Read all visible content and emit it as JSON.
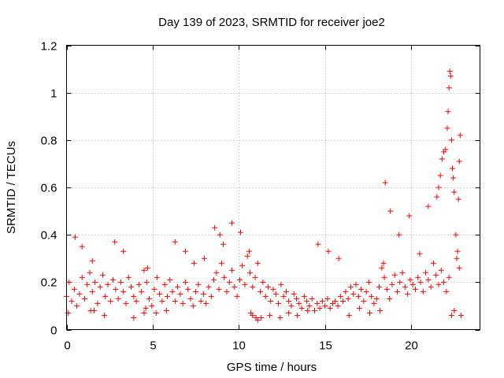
{
  "chart_data": {
    "type": "scatter",
    "title": "Day 139 of 2023, SRMTID for receiver joe2",
    "xlabel": "GPS time / hours",
    "ylabel": "SRMTID / TECUs",
    "xlim": [
      0,
      24
    ],
    "ylim": [
      0,
      1.2
    ],
    "xticks": [
      0,
      5,
      10,
      15,
      20
    ],
    "xtick_labels": [
      "0",
      "5",
      "10",
      "15",
      "20"
    ],
    "yticks": [
      0,
      0.2,
      0.4,
      0.6,
      0.8,
      1.0,
      1.2
    ],
    "ytick_labels": [
      "0",
      "0.2",
      "0.4",
      "0.6",
      "0.8",
      "1",
      "1.2"
    ],
    "grid": true,
    "marker": "+",
    "series": [
      {
        "name": "SRMTID",
        "color": "#ff0000",
        "x": [
          0.0,
          0.15,
          0.3,
          0.45,
          0.6,
          0.75,
          0.9,
          1.05,
          1.2,
          1.35,
          1.5,
          1.65,
          1.8,
          1.95,
          2.1,
          2.25,
          2.4,
          2.55,
          2.7,
          2.85,
          3.0,
          3.15,
          3.3,
          3.45,
          3.6,
          3.75,
          3.9,
          4.05,
          4.2,
          4.35,
          4.5,
          4.65,
          4.8,
          4.95,
          5.1,
          5.25,
          5.4,
          5.55,
          5.7,
          5.85,
          6.0,
          6.15,
          6.3,
          6.45,
          6.6,
          6.75,
          6.9,
          7.05,
          7.2,
          7.35,
          7.5,
          7.65,
          7.8,
          7.95,
          8.1,
          8.25,
          8.4,
          8.55,
          8.7,
          8.85,
          9.0,
          9.15,
          9.3,
          9.45,
          9.6,
          9.75,
          9.9,
          10.05,
          10.2,
          10.35,
          10.5,
          10.65,
          10.8,
          10.95,
          11.1,
          11.25,
          11.4,
          11.55,
          11.7,
          11.85,
          12.0,
          12.15,
          12.3,
          12.45,
          12.6,
          12.75,
          12.9,
          13.05,
          13.2,
          13.35,
          13.5,
          13.65,
          13.8,
          13.95,
          14.1,
          14.25,
          14.4,
          14.55,
          14.7,
          14.85,
          15.0,
          15.15,
          15.3,
          15.45,
          15.6,
          15.75,
          15.9,
          16.05,
          16.2,
          16.35,
          16.5,
          16.65,
          16.8,
          16.95,
          17.1,
          17.25,
          17.4,
          17.55,
          17.7,
          17.85,
          18.0,
          18.15,
          18.3,
          18.45,
          18.6,
          18.75,
          18.9,
          19.05,
          19.2,
          19.35,
          19.5,
          19.65,
          19.8,
          19.95,
          20.1,
          20.25,
          20.4,
          20.55,
          20.7,
          20.85,
          21.0,
          21.15,
          21.3,
          21.45,
          21.6,
          21.75,
          21.9,
          22.05,
          22.2,
          22.35,
          22.5,
          22.65,
          22.8,
          0.1,
          0.5,
          0.9,
          1.4,
          1.5,
          1.6,
          2.2,
          2.8,
          3.3,
          3.9,
          4.5,
          4.6,
          4.7,
          5.2,
          5.8,
          6.3,
          6.9,
          7.4,
          8.0,
          8.6,
          8.9,
          9.1,
          9.6,
          10.1,
          10.6,
          10.7,
          10.8,
          11.0,
          11.1,
          11.3,
          11.8,
          12.4,
          12.9,
          13.4,
          14.0,
          14.6,
          15.2,
          15.8,
          16.4,
          17.0,
          17.6,
          18.2,
          18.4,
          18.5,
          18.8,
          19.3,
          19.9,
          20.5,
          21.0,
          21.5,
          21.6,
          21.7,
          21.8,
          21.9,
          22.0,
          22.1,
          22.15,
          22.2,
          22.25,
          22.3,
          22.35,
          22.4,
          22.45,
          22.5,
          22.6,
          22.7,
          22.75,
          22.8,
          22.85,
          22.9
        ],
        "y": [
          0.14,
          0.2,
          0.12,
          0.17,
          0.1,
          0.15,
          0.22,
          0.13,
          0.19,
          0.24,
          0.16,
          0.2,
          0.11,
          0.18,
          0.23,
          0.14,
          0.19,
          0.12,
          0.21,
          0.17,
          0.13,
          0.2,
          0.16,
          0.11,
          0.22,
          0.18,
          0.14,
          0.12,
          0.19,
          0.16,
          0.25,
          0.2,
          0.13,
          0.1,
          0.17,
          0.22,
          0.15,
          0.12,
          0.19,
          0.14,
          0.21,
          0.16,
          0.12,
          0.18,
          0.15,
          0.11,
          0.2,
          0.17,
          0.13,
          0.1,
          0.16,
          0.19,
          0.12,
          0.15,
          0.11,
          0.18,
          0.14,
          0.21,
          0.24,
          0.17,
          0.28,
          0.22,
          0.16,
          0.2,
          0.25,
          0.18,
          0.14,
          0.21,
          0.27,
          0.19,
          0.31,
          0.24,
          0.18,
          0.22,
          0.28,
          0.16,
          0.2,
          0.14,
          0.18,
          0.12,
          0.17,
          0.15,
          0.11,
          0.19,
          0.14,
          0.16,
          0.12,
          0.1,
          0.15,
          0.13,
          0.11,
          0.09,
          0.14,
          0.12,
          0.1,
          0.13,
          0.08,
          0.11,
          0.09,
          0.12,
          0.1,
          0.13,
          0.09,
          0.11,
          0.12,
          0.1,
          0.14,
          0.12,
          0.16,
          0.13,
          0.18,
          0.15,
          0.19,
          0.14,
          0.17,
          0.12,
          0.16,
          0.2,
          0.14,
          0.11,
          0.13,
          0.18,
          0.26,
          0.22,
          0.17,
          0.13,
          0.19,
          0.23,
          0.16,
          0.2,
          0.24,
          0.18,
          0.15,
          0.21,
          0.19,
          0.17,
          0.22,
          0.2,
          0.16,
          0.24,
          0.21,
          0.18,
          0.28,
          0.23,
          0.19,
          0.25,
          0.2,
          0.16,
          0.22,
          0.06,
          0.08,
          0.3,
          0.26,
          0.07,
          0.39,
          0.35,
          0.08,
          0.29,
          0.08,
          0.06,
          0.37,
          0.33,
          0.05,
          0.07,
          0.09,
          0.26,
          0.07,
          0.08,
          0.37,
          0.33,
          0.28,
          0.3,
          0.43,
          0.4,
          0.36,
          0.45,
          0.41,
          0.33,
          0.07,
          0.06,
          0.05,
          0.04,
          0.05,
          0.06,
          0.05,
          0.07,
          0.06,
          0.08,
          0.36,
          0.33,
          0.3,
          0.06,
          0.09,
          0.07,
          0.08,
          0.28,
          0.62,
          0.5,
          0.4,
          0.48,
          0.32,
          0.52,
          0.56,
          0.6,
          0.65,
          0.72,
          0.75,
          0.76,
          0.85,
          0.92,
          1.02,
          1.09,
          1.07,
          0.8,
          0.68,
          0.64,
          0.58,
          0.4,
          0.33,
          0.55,
          0.71,
          0.82,
          0.06
        ]
      }
    ]
  }
}
